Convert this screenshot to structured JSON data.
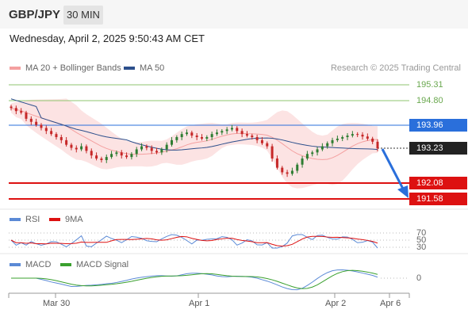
{
  "header": {
    "pair": "GBP/JPY",
    "timeframe": "30 MIN",
    "datetime": "Wednesday, April 2, 2025 9:50:43 AM CET"
  },
  "legend": {
    "ma20": "MA 20 + Bollinger Bands",
    "ma50": "MA 50",
    "credit": "Research © 2025 Trading Central"
  },
  "levels": {
    "r2": "195.31",
    "r1": "194.80",
    "pivot": "193.96",
    "last": "193.23",
    "s1": "192.08",
    "s2": "191.58"
  },
  "rsi_panel": {
    "rsi_label": "RSI",
    "ma_label": "9MA",
    "level_70": "70",
    "level_50": "50",
    "level_30": "30"
  },
  "macd_panel": {
    "macd_label": "MACD",
    "signal_label": "MACD Signal",
    "zero_label": "0"
  },
  "x_axis": [
    "Mar 30",
    "Apr 1",
    "Apr 2",
    "Apr 6"
  ],
  "colors": {
    "resistance": "#6aa84f",
    "pivot": "#2a6fdb",
    "support": "#dd1111",
    "ma20": "#f4a0a0",
    "ma50": "#2c4f8c",
    "bullish": "#2e7d32",
    "bearish": "#c62828",
    "rsi": "#5b8ad6",
    "rsi_ma": "#dd1111",
    "macd": "#5b8ad6",
    "macd_signal": "#3aa02e"
  },
  "chart_data": {
    "type": "candlestick",
    "instrument": "GBP/JPY",
    "interval": "30 MIN",
    "levels": {
      "resistance_2": 195.31,
      "resistance_1": 194.8,
      "pivot": 193.96,
      "last_price": 193.23,
      "support_1": 192.08,
      "support_2": 191.58
    },
    "x_ticks": [
      "Mar 30",
      "Apr 1",
      "Apr 2",
      "Apr 6"
    ],
    "forecast": "bearish arrow from last price toward 191.58",
    "close_approx": [
      194.55,
      194.45,
      194.4,
      194.2,
      194.1,
      194.0,
      193.9,
      193.8,
      193.7,
      193.6,
      193.5,
      193.35,
      193.25,
      193.2,
      193.3,
      193.15,
      193.0,
      192.9,
      192.85,
      192.95,
      193.05,
      193.1,
      193.0,
      192.95,
      193.05,
      193.2,
      193.3,
      193.25,
      193.15,
      193.1,
      193.2,
      193.35,
      193.5,
      193.6,
      193.7,
      193.75,
      193.65,
      193.6,
      193.55,
      193.6,
      193.7,
      193.75,
      193.8,
      193.85,
      193.9,
      193.8,
      193.7,
      193.65,
      193.6,
      193.5,
      193.4,
      193.3,
      192.9,
      192.6,
      192.45,
      192.4,
      192.5,
      192.7,
      192.9,
      193.05,
      193.1,
      193.2,
      193.3,
      193.4,
      193.5,
      193.55,
      193.6,
      193.65,
      193.7,
      193.68,
      193.62,
      193.55,
      193.45,
      193.23
    ]
  }
}
